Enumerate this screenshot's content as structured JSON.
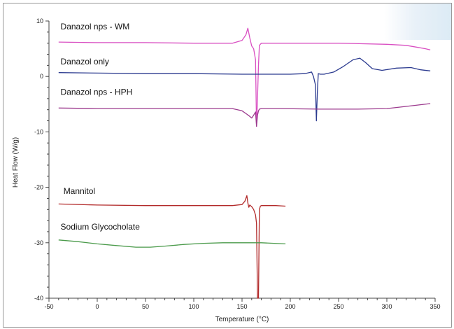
{
  "chart_data": {
    "type": "line",
    "title": "",
    "xlabel": "Temperature (°C)",
    "ylabel": "Heat Flow (W/g)",
    "xlim": [
      -50,
      350
    ],
    "ylim": [
      -40,
      10
    ],
    "x_ticks": [
      -50,
      0,
      50,
      100,
      150,
      200,
      250,
      300,
      350
    ],
    "y_ticks": [
      -40,
      -30,
      -20,
      -10,
      0,
      10
    ],
    "x_tick_labels": [
      "-50",
      "0",
      "50",
      "100",
      "150",
      "200",
      "250",
      "300",
      "350"
    ],
    "y_tick_labels": [
      "-40",
      "-30",
      "-20",
      "-10",
      "0",
      "10"
    ],
    "grid": false,
    "legend": "labels placed next to curves",
    "series": [
      {
        "name": "Danazol  nps - WM",
        "color": "#d94fc2",
        "x": [
          -40,
          0,
          50,
          100,
          140,
          150,
          154,
          156,
          158,
          160,
          162,
          164,
          165,
          166,
          167,
          168,
          170,
          180,
          200,
          250,
          300,
          320,
          330,
          340,
          345
        ],
        "y": [
          6.2,
          6.1,
          6.1,
          6.0,
          6.0,
          6.5,
          7.5,
          8.7,
          7.0,
          5.5,
          5.0,
          3.0,
          -9.0,
          -4.0,
          2.0,
          5.6,
          6.0,
          6.0,
          6.0,
          6.0,
          5.8,
          5.6,
          5.3,
          5.0,
          4.8
        ]
      },
      {
        "name": "Danazol  only",
        "color": "#2b3a8f",
        "x": [
          -40,
          0,
          50,
          100,
          150,
          200,
          215,
          222,
          224,
          226,
          227,
          228,
          229,
          231,
          235,
          245,
          255,
          265,
          272,
          278,
          285,
          295,
          310,
          325,
          335,
          345
        ],
        "y": [
          0.7,
          0.6,
          0.5,
          0.5,
          0.4,
          0.4,
          0.5,
          0.8,
          0.0,
          -1.5,
          -8.0,
          -3.0,
          0.5,
          0.4,
          0.4,
          0.8,
          1.8,
          3.0,
          3.3,
          2.5,
          1.4,
          1.1,
          1.5,
          1.6,
          1.2,
          1.0
        ]
      },
      {
        "name": "Danazol  nps - HPH",
        "color": "#9c3a8e",
        "x": [
          -40,
          0,
          50,
          100,
          140,
          150,
          155,
          158,
          160,
          162,
          164,
          165,
          166,
          167,
          168,
          170,
          190,
          230,
          270,
          300,
          320,
          345
        ],
        "y": [
          -5.7,
          -5.8,
          -5.8,
          -5.8,
          -5.8,
          -6.2,
          -6.8,
          -7.2,
          -7.5,
          -7.0,
          -6.4,
          -9.0,
          -7.0,
          -6.2,
          -5.9,
          -5.8,
          -5.8,
          -5.9,
          -5.9,
          -5.8,
          -5.4,
          -4.9
        ]
      },
      {
        "name": "Mannitol",
        "color": "#b22a2a",
        "x": [
          -40,
          0,
          50,
          100,
          140,
          150,
          153,
          155,
          156,
          157,
          158,
          160,
          162,
          164,
          165,
          166,
          167,
          168,
          169,
          170,
          175,
          185,
          195
        ],
        "y": [
          -23.0,
          -23.2,
          -23.3,
          -23.3,
          -23.3,
          -23.1,
          -22.5,
          -21.5,
          -22.8,
          -23.6,
          -23.2,
          -23.5,
          -24.0,
          -25.0,
          -26.5,
          -40.0,
          -40.0,
          -24.0,
          -23.4,
          -23.3,
          -23.3,
          -23.3,
          -23.4
        ]
      },
      {
        "name": "Sodium Glycocholate",
        "color": "#4a9a4a",
        "x": [
          -40,
          -20,
          0,
          20,
          40,
          55,
          70,
          90,
          110,
          130,
          150,
          170,
          195
        ],
        "y": [
          -29.5,
          -29.8,
          -30.2,
          -30.5,
          -30.8,
          -30.8,
          -30.6,
          -30.3,
          -30.1,
          -30.0,
          -30.0,
          -30.0,
          -30.2
        ]
      }
    ]
  }
}
